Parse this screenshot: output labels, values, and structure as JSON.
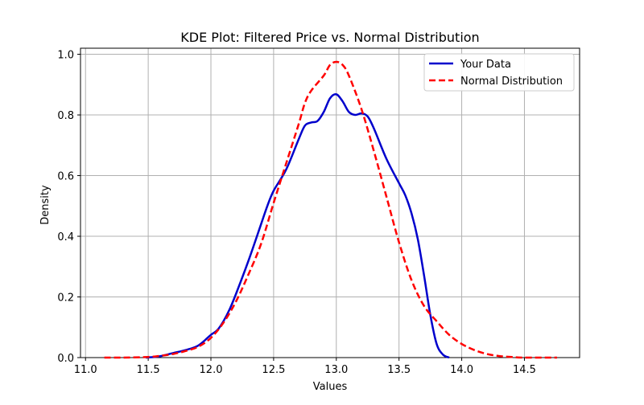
{
  "chart_data": {
    "type": "line",
    "title": "KDE Plot: Filtered Price vs. Normal Distribution",
    "xlabel": "Values",
    "ylabel": "Density",
    "xlim": [
      10.96,
      14.94
    ],
    "ylim": [
      0,
      1.02
    ],
    "xticks": [
      11.0,
      11.5,
      12.0,
      12.5,
      13.0,
      13.5,
      14.0,
      14.5
    ],
    "xtick_labels": [
      "11.0",
      "11.5",
      "12.0",
      "12.5",
      "13.0",
      "13.5",
      "14.0",
      "14.5"
    ],
    "yticks": [
      0.0,
      0.2,
      0.4,
      0.6,
      0.8,
      1.0
    ],
    "ytick_labels": [
      "0.0",
      "0.2",
      "0.4",
      "0.6",
      "0.8",
      "1.0"
    ],
    "grid": true,
    "legend_position": "top-right",
    "series": [
      {
        "name": "Your Data",
        "color": "#0000cc",
        "style": "solid",
        "points": [
          [
            11.48,
            0.0
          ],
          [
            11.55,
            0.002
          ],
          [
            11.6,
            0.005
          ],
          [
            11.7,
            0.015
          ],
          [
            11.8,
            0.025
          ],
          [
            11.9,
            0.04
          ],
          [
            12.0,
            0.075
          ],
          [
            12.05,
            0.09
          ],
          [
            12.1,
            0.12
          ],
          [
            12.15,
            0.16
          ],
          [
            12.2,
            0.21
          ],
          [
            12.3,
            0.32
          ],
          [
            12.4,
            0.44
          ],
          [
            12.45,
            0.5
          ],
          [
            12.5,
            0.55
          ],
          [
            12.6,
            0.62
          ],
          [
            12.7,
            0.72
          ],
          [
            12.75,
            0.765
          ],
          [
            12.8,
            0.775
          ],
          [
            12.85,
            0.78
          ],
          [
            12.9,
            0.81
          ],
          [
            12.95,
            0.855
          ],
          [
            13.0,
            0.868
          ],
          [
            13.05,
            0.845
          ],
          [
            13.1,
            0.81
          ],
          [
            13.15,
            0.8
          ],
          [
            13.2,
            0.805
          ],
          [
            13.25,
            0.795
          ],
          [
            13.3,
            0.755
          ],
          [
            13.4,
            0.655
          ],
          [
            13.5,
            0.575
          ],
          [
            13.55,
            0.535
          ],
          [
            13.6,
            0.475
          ],
          [
            13.65,
            0.39
          ],
          [
            13.7,
            0.27
          ],
          [
            13.75,
            0.14
          ],
          [
            13.8,
            0.045
          ],
          [
            13.85,
            0.01
          ],
          [
            13.9,
            0.0
          ]
        ]
      },
      {
        "name": "Normal Distribution",
        "color": "#ff0000",
        "style": "dashed",
        "points": [
          [
            11.15,
            0.0
          ],
          [
            11.3,
            0.0
          ],
          [
            11.5,
            0.002
          ],
          [
            11.6,
            0.006
          ],
          [
            11.7,
            0.012
          ],
          [
            11.8,
            0.022
          ],
          [
            11.9,
            0.036
          ],
          [
            12.0,
            0.065
          ],
          [
            12.1,
            0.115
          ],
          [
            12.2,
            0.185
          ],
          [
            12.3,
            0.275
          ],
          [
            12.4,
            0.375
          ],
          [
            12.5,
            0.51
          ],
          [
            12.6,
            0.64
          ],
          [
            12.7,
            0.77
          ],
          [
            12.75,
            0.84
          ],
          [
            12.8,
            0.88
          ],
          [
            12.9,
            0.93
          ],
          [
            12.95,
            0.965
          ],
          [
            13.0,
            0.975
          ],
          [
            13.05,
            0.965
          ],
          [
            13.1,
            0.93
          ],
          [
            13.2,
            0.82
          ],
          [
            13.3,
            0.68
          ],
          [
            13.4,
            0.53
          ],
          [
            13.5,
            0.38
          ],
          [
            13.6,
            0.255
          ],
          [
            13.7,
            0.17
          ],
          [
            13.8,
            0.12
          ],
          [
            13.9,
            0.075
          ],
          [
            14.0,
            0.045
          ],
          [
            14.1,
            0.025
          ],
          [
            14.2,
            0.012
          ],
          [
            14.3,
            0.005
          ],
          [
            14.4,
            0.002
          ],
          [
            14.5,
            0.0
          ],
          [
            14.76,
            0.0
          ]
        ]
      }
    ]
  }
}
